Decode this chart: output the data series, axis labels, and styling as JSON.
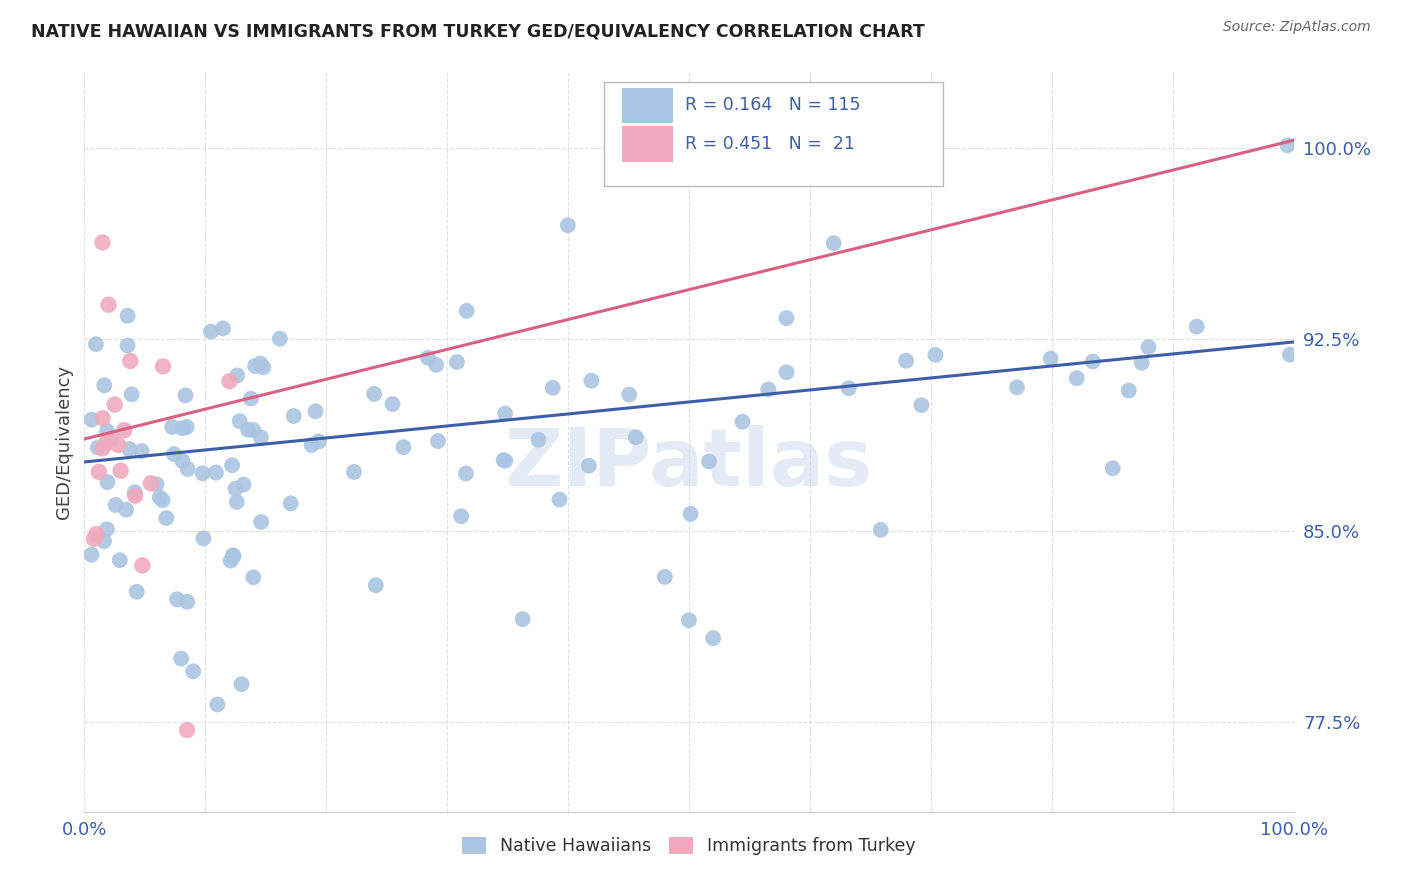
{
  "title": "NATIVE HAWAIIAN VS IMMIGRANTS FROM TURKEY GED/EQUIVALENCY CORRELATION CHART",
  "source": "Source: ZipAtlas.com",
  "ylabel": "GED/Equivalency",
  "xlim": [
    0,
    1
  ],
  "ylim": [
    0.74,
    1.03
  ],
  "ytick_vals": [
    0.775,
    0.85,
    0.925,
    1.0
  ],
  "ytick_labels": [
    "77.5%",
    "85.0%",
    "92.5%",
    "100.0%"
  ],
  "xtick_vals": [
    0.0,
    0.1,
    0.2,
    0.3,
    0.4,
    0.5,
    0.6,
    0.7,
    0.8,
    0.9,
    1.0
  ],
  "xtick_labels": [
    "0.0%",
    "",
    "",
    "",
    "",
    "",
    "",
    "",
    "",
    "",
    "100.0%"
  ],
  "legend_labels": [
    "Native Hawaiians",
    "Immigrants from Turkey"
  ],
  "blue_scatter_color": "#aac5e2",
  "pink_scatter_color": "#f0aabe",
  "blue_line_color": "#3d5fa8",
  "pink_line_color": "#d96080",
  "legend_text_color": "#3d5fa8",
  "ytick_color": "#3d5fa8",
  "xtick_color": "#3d5fa8",
  "R_blue": 0.164,
  "N_blue": 115,
  "R_pink": 0.451,
  "N_pink": 21,
  "watermark": "ZIPatlas",
  "background_color": "#ffffff",
  "grid_color": "#dddddd",
  "grid_style": "--",
  "scatter_size": 130,
  "line_width": 2.2,
  "blue_line_y0": 0.877,
  "blue_line_y1": 0.924,
  "pink_line_y0": 0.886,
  "pink_line_y1": 1.003
}
